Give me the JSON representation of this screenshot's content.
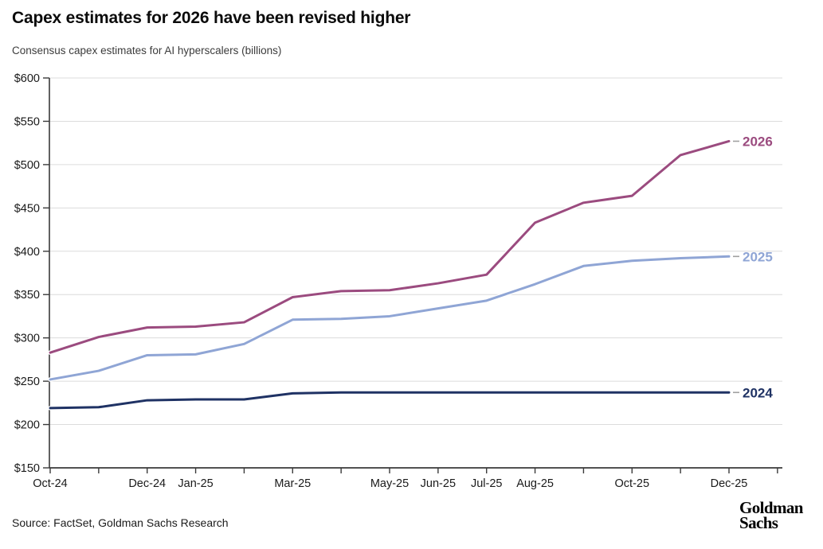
{
  "header": {
    "title": "Capex estimates for 2026 have been revised higher",
    "subtitle": "Consensus capex estimates for AI hyperscalers (billions)"
  },
  "footer": {
    "source": "Source: FactSet, Goldman Sachs Research",
    "logo_line1": "Goldman",
    "logo_line2": "Sachs"
  },
  "colors": {
    "series_2026": "#9b4b7f",
    "series_2025": "#8fa5d5",
    "series_2024": "#1f3264",
    "gridline": "#dcdcdc",
    "axis": "#3a3a3a",
    "tick_label": "#1a1a1a",
    "end_label_dash": "#a0a0a0"
  },
  "chart_data": {
    "type": "line",
    "title": "Capex estimates for 2026 have been revised higher",
    "subtitle": "Consensus capex estimates for AI hyperscalers (billions)",
    "x": [
      "Oct-24",
      "Nov-24",
      "Dec-24",
      "Jan-25",
      "Feb-25",
      "Mar-25",
      "Apr-25",
      "May-25",
      "Jun-25",
      "Jul-25",
      "Aug-25",
      "Sep-25",
      "Oct-25",
      "Nov-25",
      "Dec-25"
    ],
    "x_labeled_indices": [
      0,
      2,
      3,
      5,
      7,
      8,
      9,
      10,
      12,
      14
    ],
    "series": [
      {
        "name": "2026",
        "color": "#9b4b7f",
        "values": [
          283,
          301,
          312,
          313,
          318,
          347,
          354,
          355,
          363,
          373,
          433,
          456,
          464,
          511,
          527
        ]
      },
      {
        "name": "2025",
        "color": "#8fa5d5",
        "values": [
          252,
          262,
          280,
          281,
          293,
          321,
          322,
          325,
          334,
          343,
          362,
          383,
          389,
          392,
          394
        ]
      },
      {
        "name": "2024",
        "color": "#1f3264",
        "values": [
          219,
          220,
          228,
          229,
          229,
          236,
          237,
          237,
          237,
          237,
          237,
          237,
          237,
          237,
          237
        ]
      }
    ],
    "xlabel": "",
    "ylabel": "",
    "ylim": [
      150,
      600
    ],
    "y_ticks": [
      150,
      200,
      250,
      300,
      350,
      400,
      450,
      500,
      550,
      600
    ],
    "y_tick_prefix": "$",
    "grid": true,
    "legend_position": "line-end-labels"
  }
}
